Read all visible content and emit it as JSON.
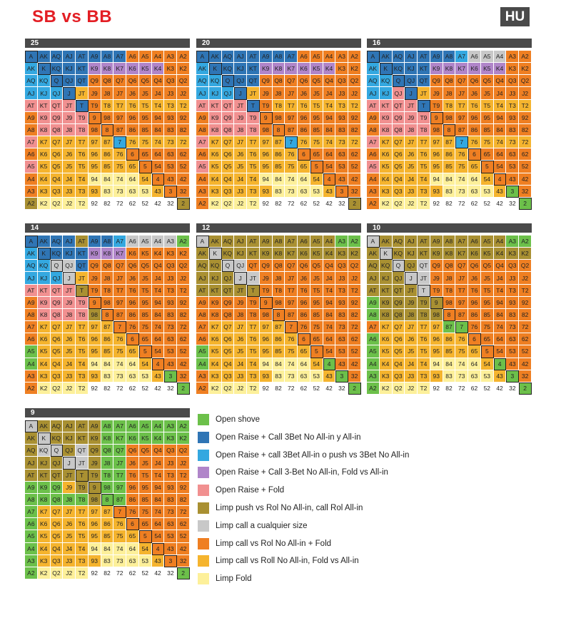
{
  "title": "SB vs BB",
  "badge": "HU",
  "ranks": [
    "A",
    "K",
    "Q",
    "J",
    "T",
    "9",
    "8",
    "7",
    "6",
    "5",
    "4",
    "3",
    "2"
  ],
  "colors": {
    "G": "#6cc04a",
    "D": "#2f75b5",
    "C": "#34a8e0",
    "P": "#b085c9",
    "K": "#f19090",
    "O": "#a99032",
    "S": "#c8c8c8",
    "R": "#ef7f22",
    "Y": "#f5b42e",
    "L": "#fdf09a",
    "W": "#ffffff"
  },
  "legend": [
    {
      "code": "G",
      "label": "Open shove"
    },
    {
      "code": "D",
      "label": "Open Raise + Call 3Bet No All-in y All-in"
    },
    {
      "code": "C",
      "label": "Open Raise + call 3Bet All-in o push vs 3Bet No All-in"
    },
    {
      "code": "P",
      "label": "Open Raise + Call 3-Bet No All-in, Fold vs All-in"
    },
    {
      "code": "K",
      "label": "Open Raise + Fold"
    },
    {
      "code": "O",
      "label": "Limp push vs Rol No All-in, call Rol All-in"
    },
    {
      "code": "S",
      "label": "Limp call a cualquier size"
    },
    {
      "code": "R",
      "label": "Limp call vs Rol No All-in + Fold"
    },
    {
      "code": "Y",
      "label": "Limp call vs Roll No All-in, Fold vs All-in"
    },
    {
      "code": "L",
      "label": "Limp Fold"
    }
  ],
  "charts": [
    {
      "label": "25",
      "rows": [
        "DDDDDDDDRRRRR",
        "CDDDDPPPPPPRR",
        "CCDDDRRRRRRRR",
        "CCCDYRRRRRRRR",
        "KKKKDRYYYYYYY",
        "RKKKKRRRRRRRR",
        "RKKKKRRRRRRRR",
        "KYYYYYYCYYYYY",
        "RYYYYYYYRRRRR",
        "KYYYYYYYYRRRR",
        "RYYYYLLLLYRRR",
        "RYYYYYLLLLYRR",
        "OLLLLWWWWWWWO"
      ]
    },
    {
      "label": "20",
      "rows": [
        "DDDDDDDDRRRRR",
        "CDDDDPPPPPPRR",
        "CCDDDRRRRRRRR",
        "CCCDYRRRRRRRR",
        "KKKKDRYYYYYYY",
        "RKKKKRRRRRRRR",
        "RKKKKRRRRRRRR",
        "KYYYYYYCYYYYY",
        "RYYYYYYYRRRRR",
        "KYYYYYYYYRRRR",
        "RYYYYLLLLYRRR",
        "RYYYYYLLLLYRR",
        "RLLLLWWWWWWWO"
      ]
    },
    {
      "label": "16",
      "rows": [
        "DDDDDDDCSSSRR",
        "CDDDDPPPPPPRR",
        "CCDDDRRRRRRRR",
        "CCKDYRRRRRRRR",
        "KKKKDRYYYYYYY",
        "RKKKKRRRRRRRR",
        "RKKKKRRRRRRRR",
        "KYYYYYYCYYYYY",
        "RYYYYYYYRRRRR",
        "KYYYYYYYYRRRR",
        "RYYYYLLLLYRRR",
        "RYYYYYLLLLYGR",
        "RLLLLWWWWWWWG"
      ]
    },
    {
      "label": "14",
      "rows": [
        "DDDDODDCSSSSG",
        "CDDDDPPPRRRRR",
        "CCSSDRRRRRRRR",
        "CCCSYRRRRRRRR",
        "KKKKORRRRRRRR",
        "RKKKKRRRRRRRR",
        "RKKKKORRRRRRR",
        "RYYYYYYRRRRRR",
        "RYYYYYYYRRRRR",
        "GYYYYYYYYRRRR",
        "GYYYYLLLLYRRR",
        "RYYYYYLLLLYGR",
        "RLLLLWWWWWWWG"
      ]
    },
    {
      "label": "12",
      "rows": [
        "SOOOOOOOOOOGG",
        "OSOOOOOOOOOOO",
        "OOSSRRRRRRRRR",
        "OOOSSRRRRRRRR",
        "OOOOORRRRRRRR",
        "RRRRRRRRRRRRR",
        "RRRRRRRRRRRRR",
        "RYYYYYYRRRRRR",
        "RYYYYYYYRRRRR",
        "GYYYYYYYYRRRR",
        "GYYYYLLLLYGRR",
        "RYYYYYLLLLYGR",
        "RLLLLWWWWWWWG"
      ]
    },
    {
      "label": "10",
      "rows": [
        "SOOOOOOOOOOGG",
        "OSOOOOOOOOOOO",
        "OOSOSRRRRRRRR",
        "OOOSSRRRRRRRR",
        "OOOOSRRRRRRRR",
        "GOOOOORRRRRRR",
        "GOOOOORRRRRRR",
        "RYYYYYGGRRRRR",
        "GYYYYYYYRRRRR",
        "GYYYYYYYYRRRR",
        "GYYYYLLLLYGRR",
        "GYYYYYLLLLYGR",
        "GLLLLWWWWWWWG"
      ]
    },
    {
      "label": "9",
      "rows": [
        "SOOOOOGGGGGGG",
        "OSOOOOGGGGGGG",
        "OSSOSOGGRRRRR",
        "OOOSSOGGRRRRR",
        "OOOOOOGGRRRRR",
        "GGGYOOGGRRRRR",
        "GGGGGOGGRRRRR",
        "GYYYYYYRRRRRR",
        "GYYYYYYYRRRRR",
        "GYYYYYYYYRRRR",
        "GYYYYLLLLYRRR",
        "GYYYYYLLLLYRR",
        "GLLLLWWWWWWWG"
      ]
    }
  ]
}
